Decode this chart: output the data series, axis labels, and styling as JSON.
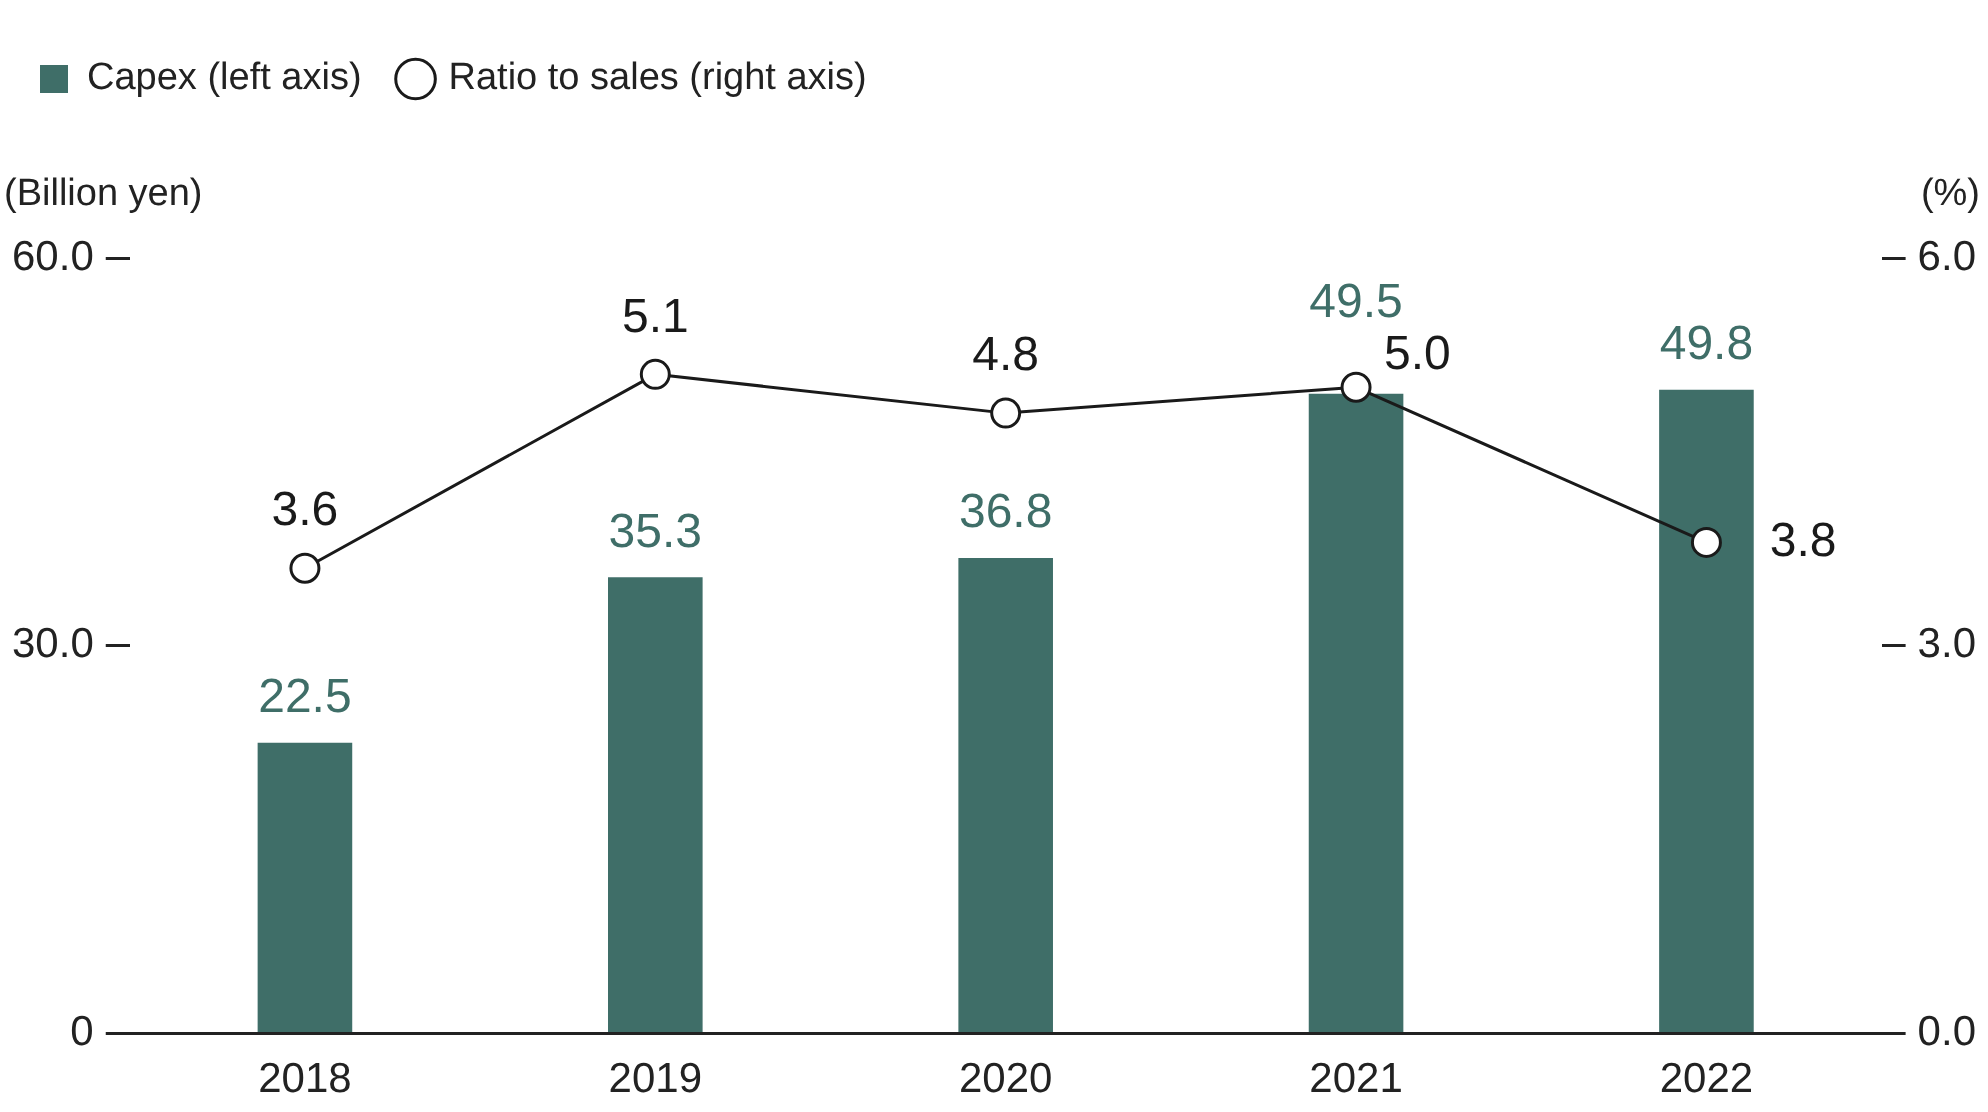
{
  "chart_data": {
    "type": "bar",
    "categories": [
      "2018",
      "2019",
      "2020",
      "2021",
      "2022"
    ],
    "series": [
      {
        "name": "Capex (left axis)",
        "color": "#3f6e68",
        "values": [
          22.5,
          35.3,
          36.8,
          49.5,
          49.8
        ],
        "value_labels": [
          "22.5",
          "35.3",
          "36.8",
          "49.5",
          "49.8"
        ]
      },
      {
        "name": "Ratio to sales (right axis)",
        "type": "line",
        "axis": "y2",
        "color": "#1a1a1a",
        "marker": "circle",
        "values": [
          3.6,
          5.1,
          4.8,
          5.0,
          3.8
        ],
        "value_labels": [
          "3.6",
          "5.1",
          "4.8",
          "5.0",
          "3.8"
        ]
      }
    ],
    "ylabel": "(Billion yen)",
    "y2label": "(%)",
    "ylim": [
      0,
      60
    ],
    "yticks": [
      {
        "value": 0,
        "label": "0"
      },
      {
        "value": 30,
        "label": "30.0"
      },
      {
        "value": 60,
        "label": "60.0"
      }
    ],
    "y2lim": [
      0,
      6
    ],
    "y2ticks": [
      {
        "value": 0,
        "label": "0.0"
      },
      {
        "value": 3,
        "label": "3.0"
      },
      {
        "value": 6,
        "label": "6.0"
      }
    ],
    "legend": "top left",
    "grid": false
  }
}
